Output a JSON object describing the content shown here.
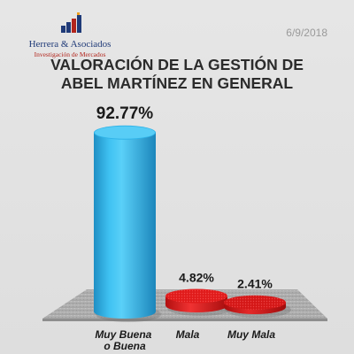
{
  "header": {
    "logo_name": "Herrera & Asociados",
    "logo_tagline": "Investigación de Mercados",
    "date": "6/9/2018"
  },
  "chart_data": {
    "type": "bar",
    "title": "VALORACIÓN DE LA GESTIÓN DE ABEL MARTÍNEZ EN GENERAL",
    "title_lines": [
      "VALORACIÓN DE LA GESTIÓN DE",
      "ABEL MARTÍNEZ EN GENERAL"
    ],
    "category_lines": [
      [
        "Muy Buena",
        "o Buena"
      ],
      [
        "Mala"
      ],
      [
        "Muy Mala"
      ]
    ],
    "values": [
      92.77,
      4.82,
      2.41
    ],
    "value_labels": [
      "92.77%",
      "4.82%",
      "2.41%"
    ],
    "colors": [
      "#2fb3e8",
      "#e01b1b",
      "#d41717"
    ],
    "ylim": [
      0,
      100
    ],
    "grid": false,
    "legend": "none"
  }
}
